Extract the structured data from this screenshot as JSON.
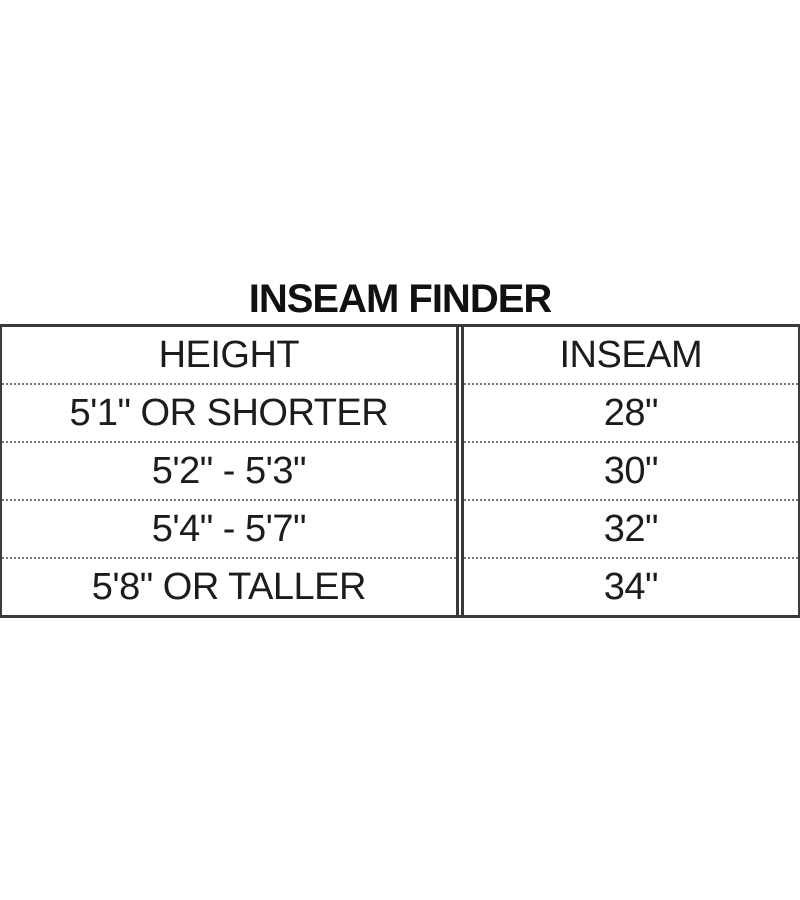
{
  "title": "INSEAM FINDER",
  "table": {
    "columns": {
      "height": "HEIGHT",
      "inseam": "INSEAM"
    },
    "rows": [
      {
        "height": "5'1\" OR SHORTER",
        "inseam": "28\""
      },
      {
        "height": "5'2\" - 5'3\"",
        "inseam": "30\""
      },
      {
        "height": "5'4\" - 5'7\"",
        "inseam": "32\""
      },
      {
        "height": "5'8\" OR TALLER",
        "inseam": "34\""
      }
    ]
  }
}
